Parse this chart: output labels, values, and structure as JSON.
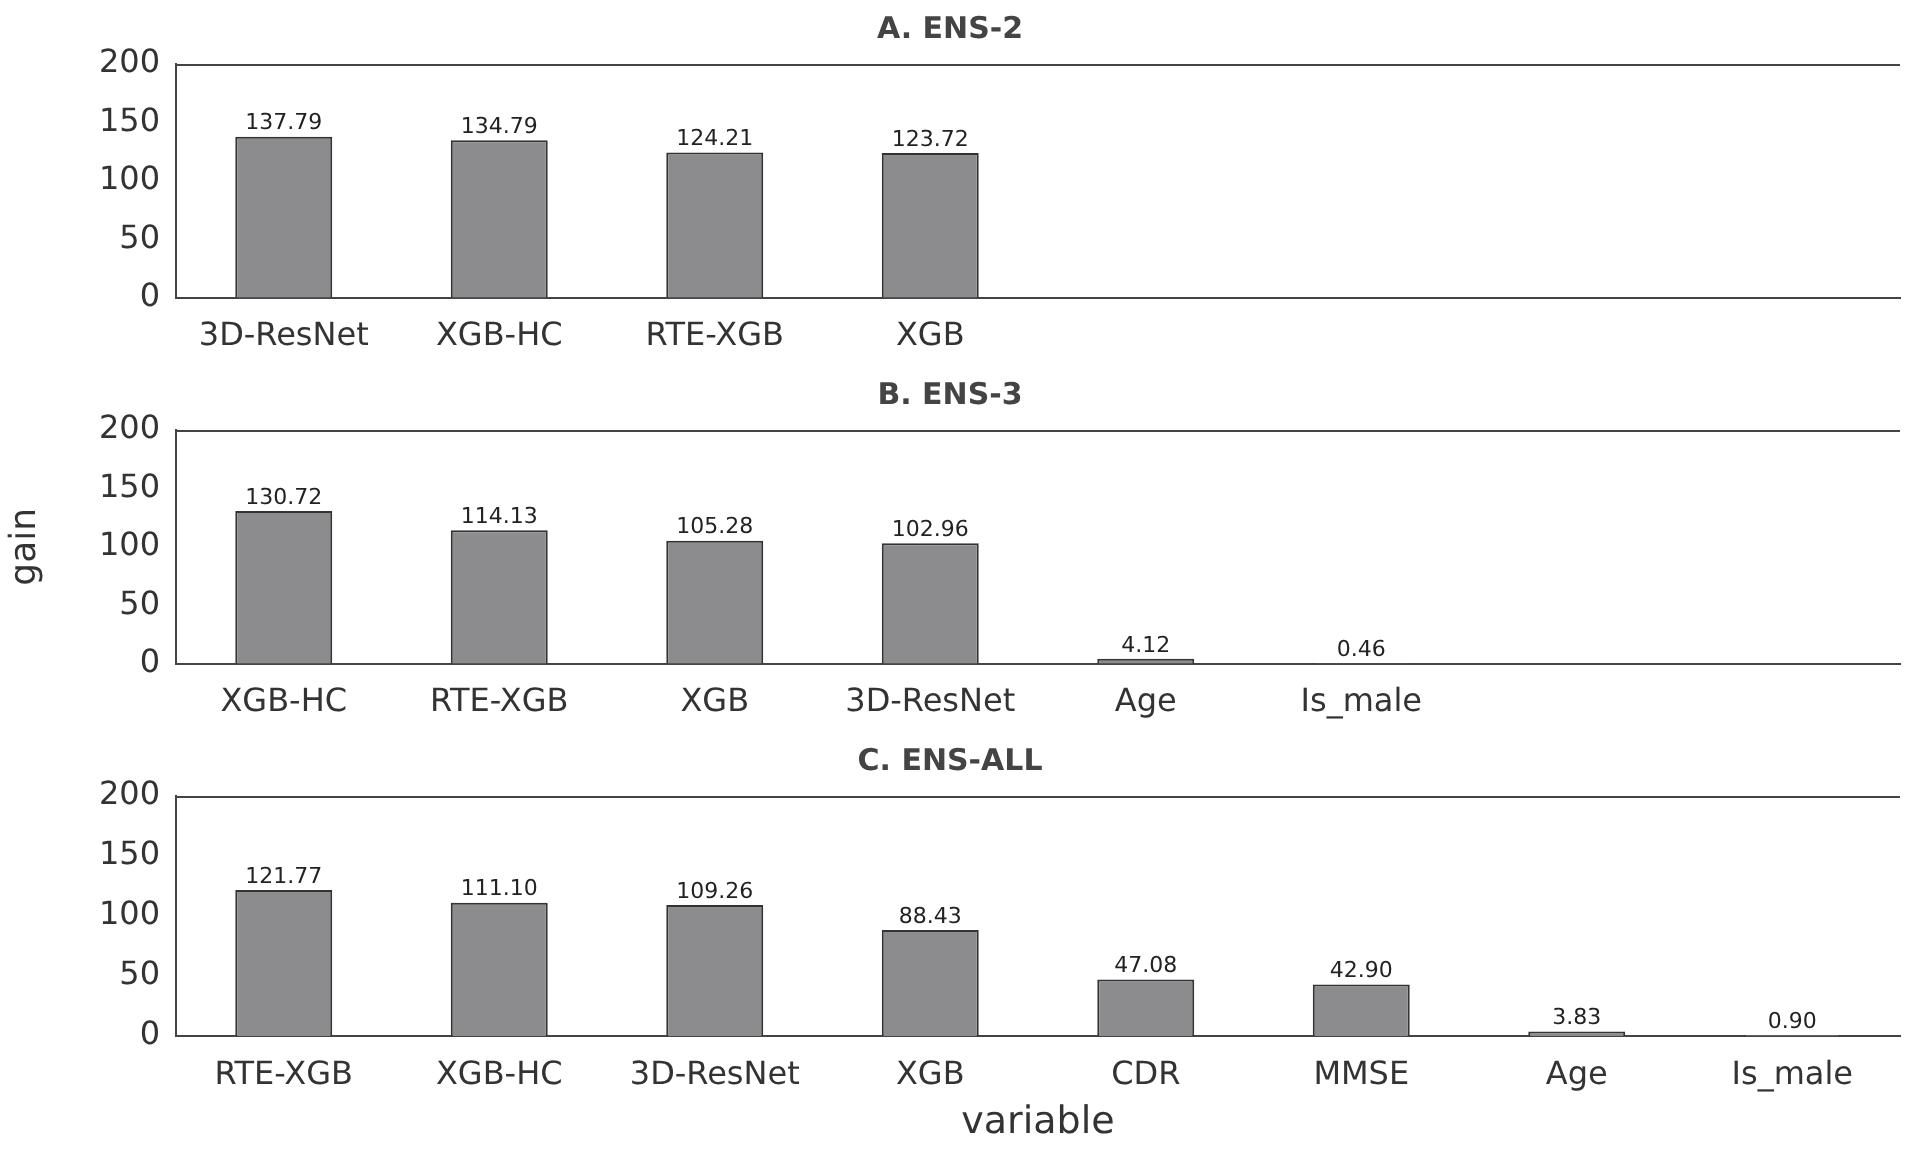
{
  "chart_data": [
    {
      "type": "bar",
      "title": "A. ENS-2",
      "categories": [
        "3D-ResNet",
        "XGB-HC",
        "RTE-XGB",
        "XGB",
        null,
        null,
        null,
        null
      ],
      "values": [
        137.79,
        134.79,
        124.21,
        123.72,
        0,
        0,
        0,
        0
      ],
      "value_labels": [
        "137.79",
        "134.79",
        "124.21",
        "123.72",
        null,
        null,
        null,
        null
      ],
      "color": "#8c8c8e",
      "ylim": [
        0,
        200
      ],
      "yticks": [
        0,
        50,
        100,
        150,
        200
      ],
      "grid": false,
      "legend": false
    },
    {
      "type": "bar",
      "title": "B. ENS-3",
      "ylabel": "gain",
      "categories": [
        "XGB-HC",
        "RTE-XGB",
        "XGB",
        "3D-ResNet",
        "Age",
        "Is_male",
        null,
        null
      ],
      "values": [
        130.72,
        114.13,
        105.28,
        102.96,
        4.12,
        0.46,
        0,
        0
      ],
      "value_labels": [
        "130.72",
        "114.13",
        "105.28",
        "102.96",
        "4.12",
        "0.46",
        null,
        null
      ],
      "color": "#8c8c8e",
      "ylim": [
        0,
        200
      ],
      "yticks": [
        0,
        50,
        100,
        150,
        200
      ],
      "grid": false,
      "legend": false
    },
    {
      "type": "bar",
      "title": "C. ENS-ALL",
      "xlabel": "variable",
      "categories": [
        "RTE-XGB",
        "XGB-HC",
        "3D-ResNet",
        "XGB",
        "CDR",
        "MMSE",
        "Age",
        "Is_male"
      ],
      "values": [
        121.77,
        111.1,
        109.26,
        88.43,
        47.08,
        42.9,
        3.83,
        0.9
      ],
      "value_labels": [
        "121.77",
        "111.10",
        "109.26",
        "88.43",
        "47.08",
        "42.90",
        "3.83",
        "0.90"
      ],
      "color": "#8c8c8e",
      "ylim": [
        0,
        200
      ],
      "yticks": [
        0,
        50,
        100,
        150,
        200
      ],
      "grid": false,
      "legend": false
    }
  ]
}
